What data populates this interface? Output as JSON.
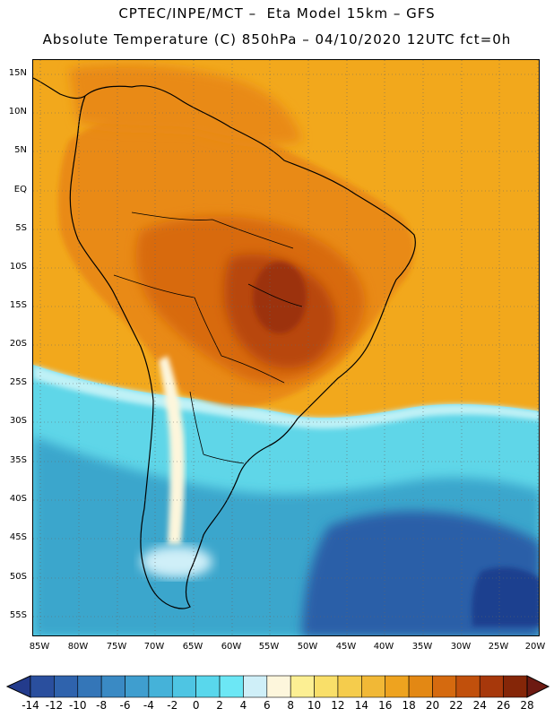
{
  "header": {
    "line1": "CPTEC/INPE/MCT –  Eta Model 15km – GFS",
    "line2": "Absolute Temperature (C) 850hPa – 04/10/2020 12UTC fct=0h"
  },
  "map": {
    "lat_labels": [
      "15N",
      "10N",
      "5N",
      "EQ",
      "5S",
      "10S",
      "15S",
      "20S",
      "25S",
      "30S",
      "35S",
      "40S",
      "45S",
      "50S",
      "55S"
    ],
    "lon_labels": [
      "85W",
      "80W",
      "75W",
      "70W",
      "65W",
      "60W",
      "55W",
      "50W",
      "45W",
      "40W",
      "35W",
      "30W",
      "25W",
      "20W"
    ],
    "colors": {
      "ocean_warm": "#f2a81c",
      "land_warm": "#e98a15",
      "land_hot": "#d86a0c",
      "core_hot": "#b8470a",
      "core_very_hot": "#9c330a",
      "cold_front": "#bff1f6",
      "cyan": "#5fd6e8",
      "mid_blue": "#3ba6cc",
      "deep_blue": "#2a5ea8",
      "darkest_blue": "#1e3f8f"
    }
  },
  "legend": {
    "labels": [
      "-14",
      "-12",
      "-10",
      "-8",
      "-6",
      "-4",
      "-2",
      "0",
      "2",
      "4",
      "6",
      "8",
      "10",
      "12",
      "14",
      "16",
      "18",
      "20",
      "22",
      "24",
      "26",
      "28"
    ],
    "colors": [
      "#233b8c",
      "#2a4f9e",
      "#2f63ad",
      "#3476b8",
      "#3a8ac4",
      "#3f9ecf",
      "#45b2d9",
      "#4ec5e3",
      "#59d7ec",
      "#6ce7f5",
      "#cfeff8",
      "#fdf6dc",
      "#fcef93",
      "#f9df69",
      "#f5cc4c",
      "#f1b836",
      "#eea31f",
      "#e38814",
      "#d56a0f",
      "#c1500c",
      "#a7380b",
      "#852608",
      "#6d1a12"
    ]
  }
}
